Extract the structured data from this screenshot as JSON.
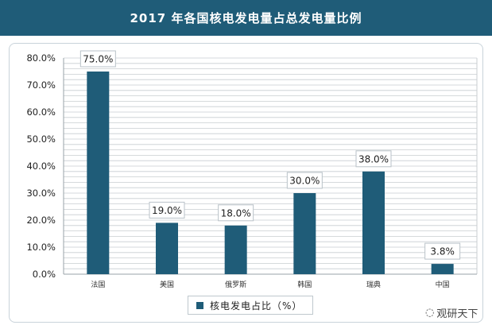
{
  "title": "2017 年各国核电发电量占总发电量比例",
  "legend": {
    "label": "核电发电占比（%）"
  },
  "watermark": {
    "text": "观研天下",
    "icon": "wechat-chat-icon"
  },
  "colors": {
    "bar": "#1f5c78",
    "title_bg": "#1f5c78",
    "grid": "#c8cdd1"
  },
  "chart_data": {
    "type": "bar",
    "categories": [
      "法国",
      "美国",
      "俄罗斯",
      "韩国",
      "瑞典",
      "中国"
    ],
    "series": [
      {
        "name": "核电发电占比（%）",
        "values": [
          75.0,
          19.0,
          18.0,
          30.0,
          38.0,
          3.8
        ]
      }
    ],
    "data_labels": [
      "75.0%",
      "19.0%",
      "18.0%",
      "30.0%",
      "38.0%",
      "3.8%"
    ],
    "y_ticks": [
      "0.0%",
      "10.0%",
      "20.0%",
      "30.0%",
      "40.0%",
      "50.0%",
      "60.0%",
      "70.0%",
      "80.0%"
    ],
    "ylim": [
      0,
      80
    ],
    "grid": true,
    "legend_position": "bottom"
  }
}
